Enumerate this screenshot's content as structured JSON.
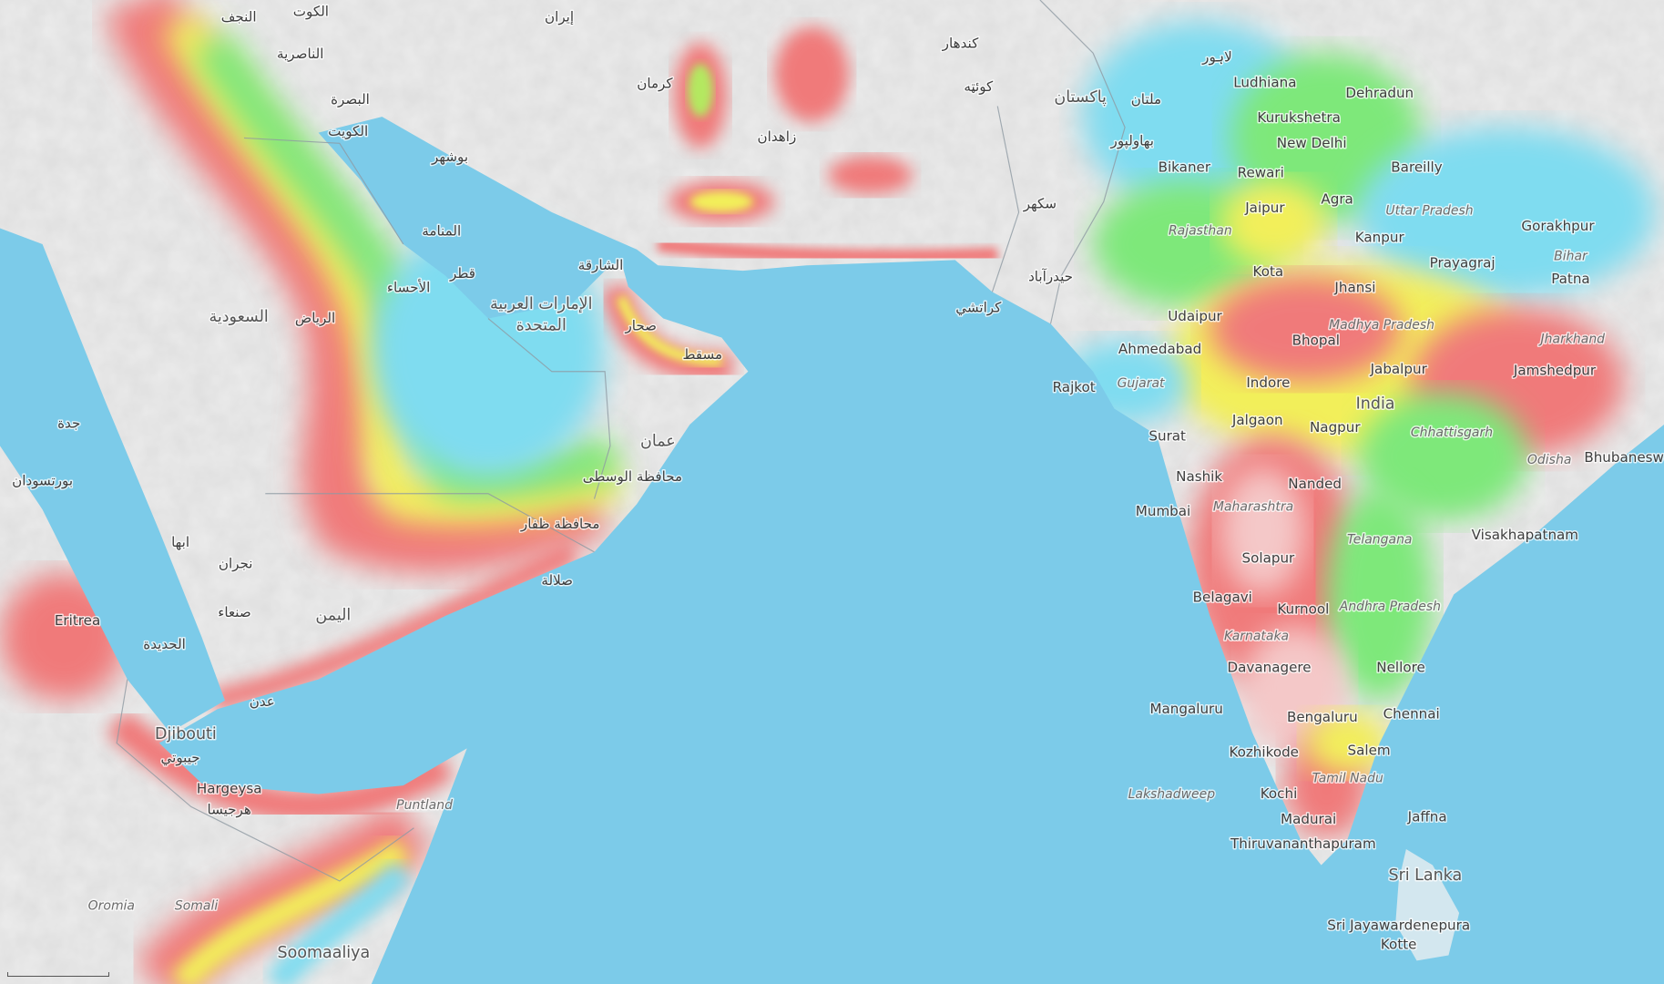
{
  "map": {
    "type": "terrain heat-overlay map",
    "colors": {
      "sea": "#7ccbe9",
      "land": "#ececec",
      "heat_low": "#7fdcf0",
      "heat_mid_green": "#7ee87a",
      "heat_mid_yellow": "#f2ef5a",
      "heat_high": "#f07a7a",
      "border": "#9aa5ad"
    },
    "labels": [
      "Ludhiana",
      "Dehradun",
      "Kurukshetra",
      "New Delhi",
      "Bikaner",
      "Rewari",
      "Bareilly",
      "Agra",
      "Jaipur",
      "Rajasthan",
      "Uttar Pradesh",
      "Gorakhpur",
      "Kanpur",
      "Prayagraj",
      "Bihar",
      "Patna",
      "Kota",
      "Jhansi",
      "Udaipur",
      "Madhya Pradesh",
      "Ahmedabad",
      "Bhopal",
      "Jharkhand",
      "Jabalpur",
      "Jamshedpur",
      "Rajkot",
      "Gujarat",
      "Indore",
      "India",
      "Jalgaon",
      "Nagpur",
      "Chhattisgarh",
      "Surat",
      "Odisha",
      "Bhubaneswar",
      "Nashik",
      "Nanded",
      "Mumbai",
      "Maharashtra",
      "Telangana",
      "Visakhapatnam",
      "Solapur",
      "Belagavi",
      "Andhra Pradesh",
      "Kurnool",
      "Karnataka",
      "Davanagere",
      "Nellore",
      "Mangaluru",
      "Chennai",
      "Bengaluru",
      "Salem",
      "Kozhikode",
      "Tamil Nadu",
      "Kochi",
      "Lakshadweep",
      "Jaffna",
      "Madurai",
      "Thiruvananthapuram",
      "Sri Lanka",
      "Sri Jayawardenepura",
      "Kotte",
      "Eritrea",
      "Djibouti",
      "Hargeysa",
      "Puntland",
      "Oromia",
      "Somali",
      "Soomaaliya",
      "الكويت",
      "البصرة",
      "الناصرية",
      "النجف",
      "الكوت",
      "إيران",
      "السعودية",
      "الرياض",
      "الأحساء",
      "قطر",
      "المنامة",
      "الإمارات العربية",
      "المتحدة",
      "مسقط",
      "عمان",
      "صلالة",
      "اليمن",
      "صنعاء",
      "عدن",
      "جدة",
      "بورتسودان",
      "كراتشي",
      "پاکستان",
      "ملتان",
      "لاہور",
      "زاهدان",
      "كرمان",
      "بوشهر",
      "الحديدة",
      "ابها",
      "نجران",
      "محافظة ظفار",
      "محافظة الوسطى",
      "صحار",
      "الشارقة",
      "جيبوتي",
      "هرجيسا",
      "كندهار",
      "كوئټه",
      "بهاولپور",
      "حيدرآباد",
      "سكهر",
      "Rajasthan"
    ],
    "scale_bar": "scale-bar"
  }
}
